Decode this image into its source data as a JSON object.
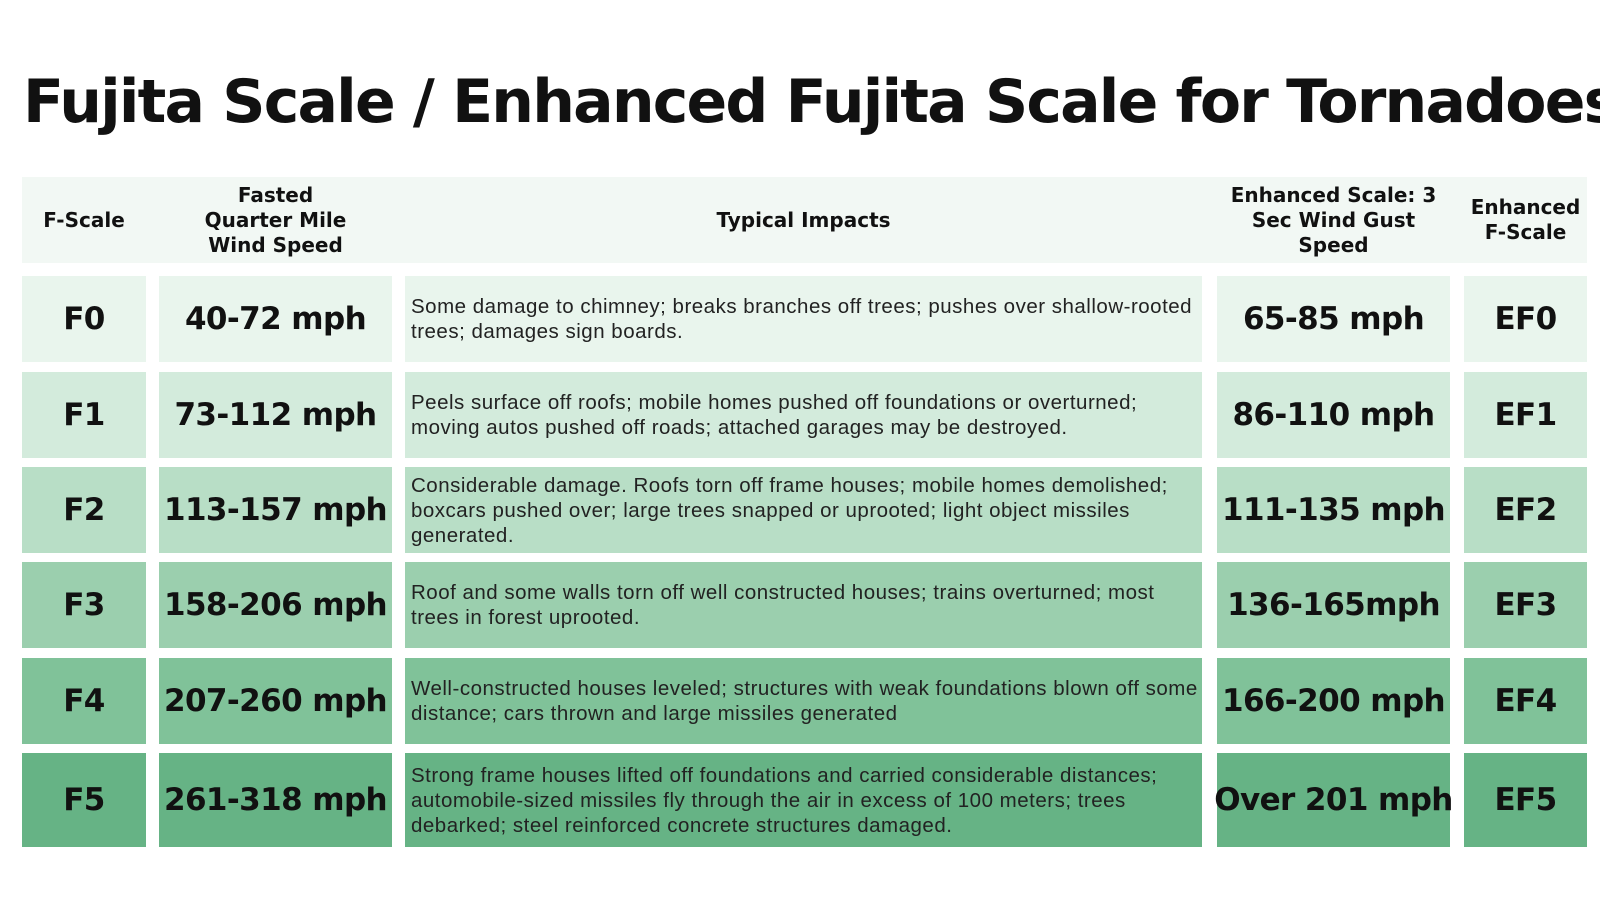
{
  "title": "Fujita Scale / Enhanced Fujita Scale for Tornadoes",
  "headers": {
    "fscale": "F-Scale",
    "fastest": "Fasted Quarter Mile Wind Speed",
    "impacts": "Typical Impacts",
    "gust": "Enhanced Scale: 3 Sec Wind Gust Speed",
    "efscale": "Enhanced F-Scale"
  },
  "colors": {
    "header_bg": "#f2f8f4",
    "row_bg": [
      "#e9f5ed",
      "#d3ebdc",
      "#b8dec6",
      "#9bcfae",
      "#80c299",
      "#66b385"
    ]
  },
  "rows": [
    {
      "f": "F0",
      "speed": "40-72 mph",
      "impact": "Some damage to chimney; breaks branches off trees; pushes over shallow-rooted trees; damages sign boards.",
      "gust": "65-85 mph",
      "ef": "EF0"
    },
    {
      "f": "F1",
      "speed": "73-112 mph",
      "impact": "Peels surface off roofs; mobile homes pushed off foundations or overturned; moving autos pushed off roads; attached garages may be destroyed.",
      "gust": "86-110 mph",
      "ef": "EF1"
    },
    {
      "f": "F2",
      "speed": "113-157 mph",
      "impact": "Considerable damage. Roofs torn off frame houses; mobile homes demolished; boxcars pushed over; large trees snapped or uprooted; light object missiles generated.",
      "gust": "111-135 mph",
      "ef": "EF2"
    },
    {
      "f": "F3",
      "speed": "158-206 mph",
      "impact": "Roof and some walls torn off well constructed houses; trains overturned; most trees in forest uprooted.",
      "gust": "136-165mph",
      "ef": "EF3"
    },
    {
      "f": "F4",
      "speed": "207-260 mph",
      "impact": "Well-constructed houses leveled; structures with weak foundations blown off some distance; cars thrown and large missiles generated",
      "gust": "166-200 mph",
      "ef": "EF4"
    },
    {
      "f": "F5",
      "speed": "261-318 mph",
      "impact": "Strong frame houses lifted off foundations and carried considerable distances; automobile-sized missiles fly through the air in excess of 100 meters; trees debarked; steel reinforced concrete structures damaged.",
      "gust": "Over 201 mph",
      "ef": "EF5"
    }
  ]
}
